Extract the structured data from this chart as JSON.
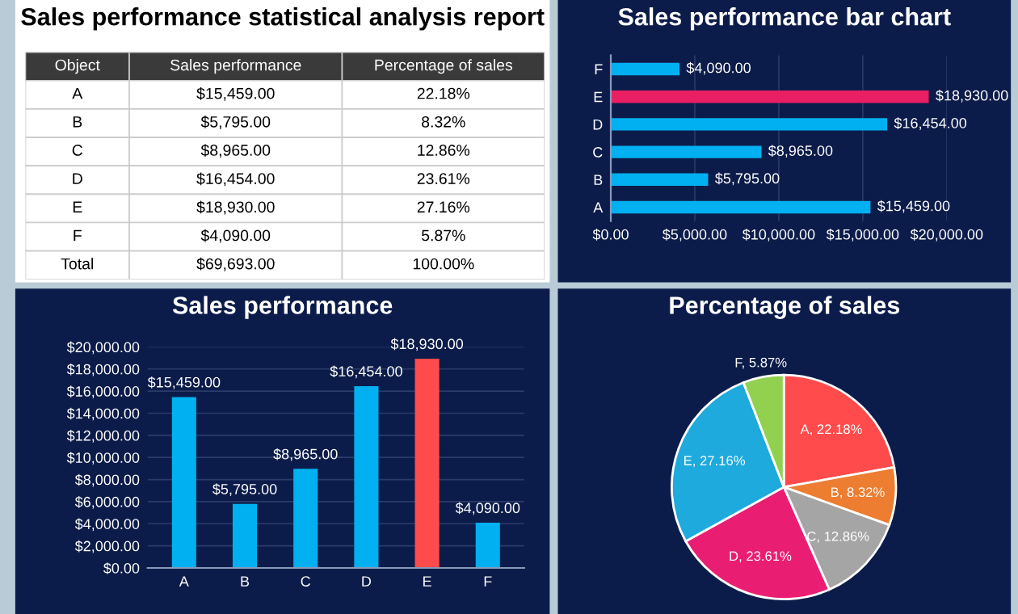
{
  "chart_data": [
    {
      "type": "other",
      "title": "Sales performance statistical analysis report",
      "annotations": [
        "Object",
        "Sales performance",
        "Percentage of sales",
        "A",
        "$15,459.00",
        "22.18%",
        "B",
        "$5,795.00",
        "8.32%",
        "C",
        "$8,965.00",
        "12.86%",
        "D",
        "$16,454.00",
        "23.61%",
        "E",
        "$18,930.00",
        "27.16%",
        "F",
        "$4,090.00",
        "5.87%",
        "Total",
        "$69,693.00",
        "100.00%"
      ]
    },
    {
      "type": "bar",
      "orientation": "horizontal",
      "title": "Sales performance bar chart",
      "categories": [
        "F",
        "E",
        "D",
        "C",
        "B",
        "A"
      ],
      "values": [
        4090,
        18930,
        16454,
        8965,
        5795,
        15459
      ],
      "colors": [
        "#00b0f0",
        "#e91e63",
        "#00b0f0",
        "#00b0f0",
        "#00b0f0",
        "#00b0f0"
      ],
      "value_labels": [
        "$4,090.00",
        "$18,930.00",
        "$16,454.00",
        "$8,965.00",
        "$5,795.00",
        "$15,459.00"
      ],
      "xlim": [
        0,
        20000
      ],
      "xticks": [
        {
          "value": 0,
          "label": "$0.00"
        },
        {
          "value": 5000,
          "label": "$5,000.00"
        },
        {
          "value": 10000,
          "label": "$10,000.00"
        },
        {
          "value": 15000,
          "label": "$15,000.00"
        },
        {
          "value": 20000,
          "label": "$20,000.00"
        }
      ],
      "grid": "x"
    },
    {
      "type": "bar",
      "title": "Sales performance",
      "categories": [
        "A",
        "B",
        "C",
        "D",
        "E",
        "F"
      ],
      "values": [
        15459,
        5795,
        8965,
        16454,
        18930,
        4090
      ],
      "colors": [
        "#00b0f0",
        "#00b0f0",
        "#00b0f0",
        "#00b0f0",
        "#ff4b4b",
        "#00b0f0"
      ],
      "value_labels": [
        "$15,459.00",
        "$5,795.00",
        "$8,965.00",
        "$16,454.00",
        "$18,930.00",
        "$4,090.00"
      ],
      "ylim": [
        0,
        20000
      ],
      "yticks": [
        {
          "value": 0,
          "label": "$0.00"
        },
        {
          "value": 2000,
          "label": "$2,000.00"
        },
        {
          "value": 4000,
          "label": "$4,000.00"
        },
        {
          "value": 6000,
          "label": "$6,000.00"
        },
        {
          "value": 8000,
          "label": "$8,000.00"
        },
        {
          "value": 10000,
          "label": "$10,000.00"
        },
        {
          "value": 12000,
          "label": "$12,000.00"
        },
        {
          "value": 14000,
          "label": "$14,000.00"
        },
        {
          "value": 16000,
          "label": "$16,000.00"
        },
        {
          "value": 18000,
          "label": "$18,000.00"
        },
        {
          "value": 20000,
          "label": "$20,000.00"
        }
      ],
      "grid": "y"
    },
    {
      "type": "pie",
      "title": "Percentage of sales",
      "categories": [
        null,
        null,
        null,
        null,
        null,
        null
      ],
      "values": [
        22.18,
        8.32,
        12.86,
        23.61,
        27.16,
        5.87
      ],
      "colors": [
        "#ff4b4b",
        "#ed7d31",
        "#a5a5a5",
        "#e91e73",
        "#1eaadc",
        "#92d050"
      ],
      "value_labels": [
        "A, 22.18%",
        "B, 8.32%",
        "C, 12.86%",
        "D, 23.61%",
        "E, 27.16%",
        "F, 5.87%"
      ]
    }
  ]
}
